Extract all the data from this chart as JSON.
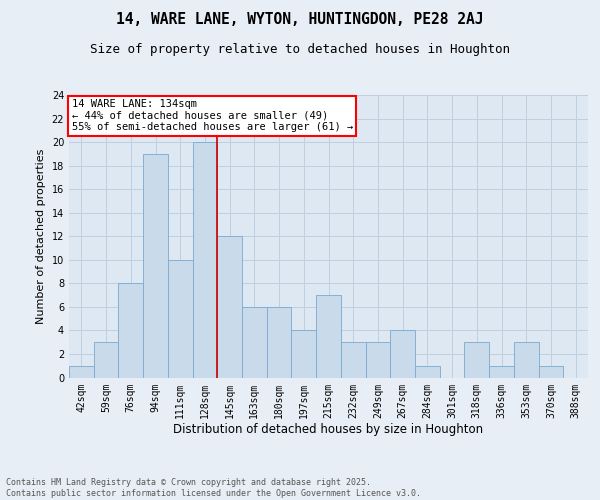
{
  "title1": "14, WARE LANE, WYTON, HUNTINGDON, PE28 2AJ",
  "title2": "Size of property relative to detached houses in Houghton",
  "xlabel": "Distribution of detached houses by size in Houghton",
  "ylabel": "Number of detached properties",
  "bin_labels": [
    "42sqm",
    "59sqm",
    "76sqm",
    "94sqm",
    "111sqm",
    "128sqm",
    "145sqm",
    "163sqm",
    "180sqm",
    "197sqm",
    "215sqm",
    "232sqm",
    "249sqm",
    "267sqm",
    "284sqm",
    "301sqm",
    "318sqm",
    "336sqm",
    "353sqm",
    "370sqm",
    "388sqm"
  ],
  "bar_heights": [
    1,
    3,
    8,
    19,
    10,
    20,
    12,
    6,
    6,
    4,
    7,
    3,
    3,
    4,
    1,
    0,
    3,
    1,
    3,
    1,
    0
  ],
  "bar_color": "#c9daea",
  "bar_edge_color": "#7aaad0",
  "annotation_text": "14 WARE LANE: 134sqm\n← 44% of detached houses are smaller (49)\n55% of semi-detached houses are larger (61) →",
  "annotation_box_color": "white",
  "annotation_box_edge": "red",
  "ylim": [
    0,
    24
  ],
  "yticks": [
    0,
    2,
    4,
    6,
    8,
    10,
    12,
    14,
    16,
    18,
    20,
    22,
    24
  ],
  "footer_text": "Contains HM Land Registry data © Crown copyright and database right 2025.\nContains public sector information licensed under the Open Government Licence v3.0.",
  "bg_color": "#e8eef5",
  "plot_bg_color": "#dde8f3",
  "grid_color": "#c0cfe0",
  "title1_fontsize": 10.5,
  "title2_fontsize": 9,
  "ylabel_fontsize": 8,
  "xlabel_fontsize": 8.5,
  "tick_fontsize": 7,
  "footer_fontsize": 6,
  "ann_fontsize": 7.5
}
